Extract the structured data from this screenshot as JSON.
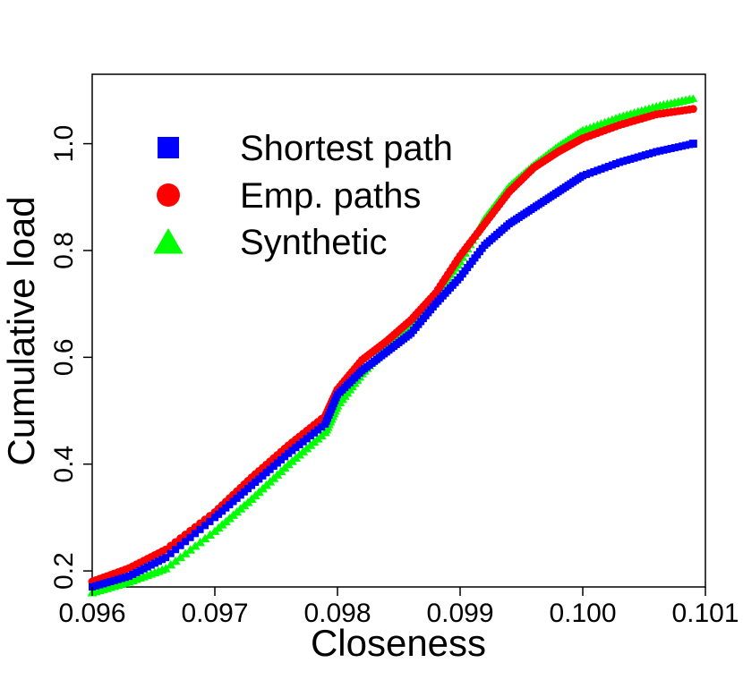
{
  "chart_data": {
    "type": "scatter",
    "xlabel": "Closeness",
    "ylabel": "Cumulative load",
    "xlim": [
      0.096,
      0.101
    ],
    "ylim": [
      0.17,
      1.13
    ],
    "x_ticks": [
      "0.096",
      "0.097",
      "0.098",
      "0.099",
      "0.100",
      "0.101"
    ],
    "y_ticks": [
      "0.2",
      "0.4",
      "0.6",
      "0.8",
      "1.0"
    ],
    "grid": false,
    "legend_position": "top-left",
    "series": [
      {
        "name": "Shortest path",
        "color": "#0000ff",
        "marker": "square",
        "points": [
          [
            0.096,
            0.17
          ],
          [
            0.0963,
            0.19
          ],
          [
            0.0966,
            0.225
          ],
          [
            0.097,
            0.3
          ],
          [
            0.0973,
            0.36
          ],
          [
            0.0976,
            0.42
          ],
          [
            0.0979,
            0.475
          ],
          [
            0.098,
            0.53
          ],
          [
            0.0982,
            0.575
          ],
          [
            0.0984,
            0.61
          ],
          [
            0.0986,
            0.645
          ],
          [
            0.0988,
            0.7
          ],
          [
            0.099,
            0.75
          ],
          [
            0.0992,
            0.81
          ],
          [
            0.0994,
            0.85
          ],
          [
            0.0996,
            0.88
          ],
          [
            0.0998,
            0.91
          ],
          [
            0.1,
            0.94
          ],
          [
            0.1003,
            0.965
          ],
          [
            0.1006,
            0.985
          ],
          [
            0.1009,
            1.0
          ]
        ]
      },
      {
        "name": "Emp. paths",
        "color": "#ff0000",
        "marker": "circle",
        "points": [
          [
            0.096,
            0.18
          ],
          [
            0.0963,
            0.205
          ],
          [
            0.0966,
            0.24
          ],
          [
            0.097,
            0.31
          ],
          [
            0.0973,
            0.375
          ],
          [
            0.0976,
            0.435
          ],
          [
            0.0979,
            0.49
          ],
          [
            0.098,
            0.54
          ],
          [
            0.0982,
            0.595
          ],
          [
            0.0984,
            0.63
          ],
          [
            0.0986,
            0.67
          ],
          [
            0.0988,
            0.72
          ],
          [
            0.099,
            0.79
          ],
          [
            0.0992,
            0.85
          ],
          [
            0.0994,
            0.91
          ],
          [
            0.0996,
            0.955
          ],
          [
            0.0998,
            0.985
          ],
          [
            0.1,
            1.01
          ],
          [
            0.1003,
            1.035
          ],
          [
            0.1006,
            1.055
          ],
          [
            0.1009,
            1.065
          ]
        ]
      },
      {
        "name": "Synthetic",
        "color": "#00ff00",
        "marker": "triangle",
        "points": [
          [
            0.096,
            0.16
          ],
          [
            0.0963,
            0.18
          ],
          [
            0.0966,
            0.205
          ],
          [
            0.097,
            0.275
          ],
          [
            0.0973,
            0.335
          ],
          [
            0.0976,
            0.4
          ],
          [
            0.0979,
            0.46
          ],
          [
            0.098,
            0.51
          ],
          [
            0.0982,
            0.57
          ],
          [
            0.0984,
            0.62
          ],
          [
            0.0986,
            0.66
          ],
          [
            0.0988,
            0.72
          ],
          [
            0.099,
            0.78
          ],
          [
            0.0992,
            0.86
          ],
          [
            0.0994,
            0.92
          ],
          [
            0.0996,
            0.96
          ],
          [
            0.0998,
            0.995
          ],
          [
            0.1,
            1.025
          ],
          [
            0.1003,
            1.05
          ],
          [
            0.1006,
            1.07
          ],
          [
            0.1009,
            1.085
          ]
        ]
      }
    ]
  }
}
